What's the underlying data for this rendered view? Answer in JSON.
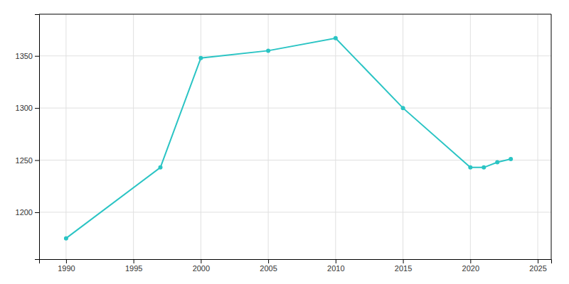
{
  "chart_data": {
    "type": "line",
    "x": [
      1990,
      1997,
      2000,
      2005,
      2010,
      2015,
      2020,
      2021,
      2022,
      2023
    ],
    "values": [
      1175,
      1243,
      1348,
      1355,
      1367,
      1300,
      1243,
      1243,
      1248,
      1251
    ],
    "color": "#2ac4c4",
    "marker": "circle",
    "xlim": [
      1988,
      2026
    ],
    "ylim": [
      1155,
      1390
    ],
    "xticks": [
      1990,
      1995,
      2000,
      2005,
      2010,
      2015,
      2020,
      2025
    ],
    "yticks": [
      1200,
      1250,
      1300,
      1350
    ],
    "grid": true
  }
}
